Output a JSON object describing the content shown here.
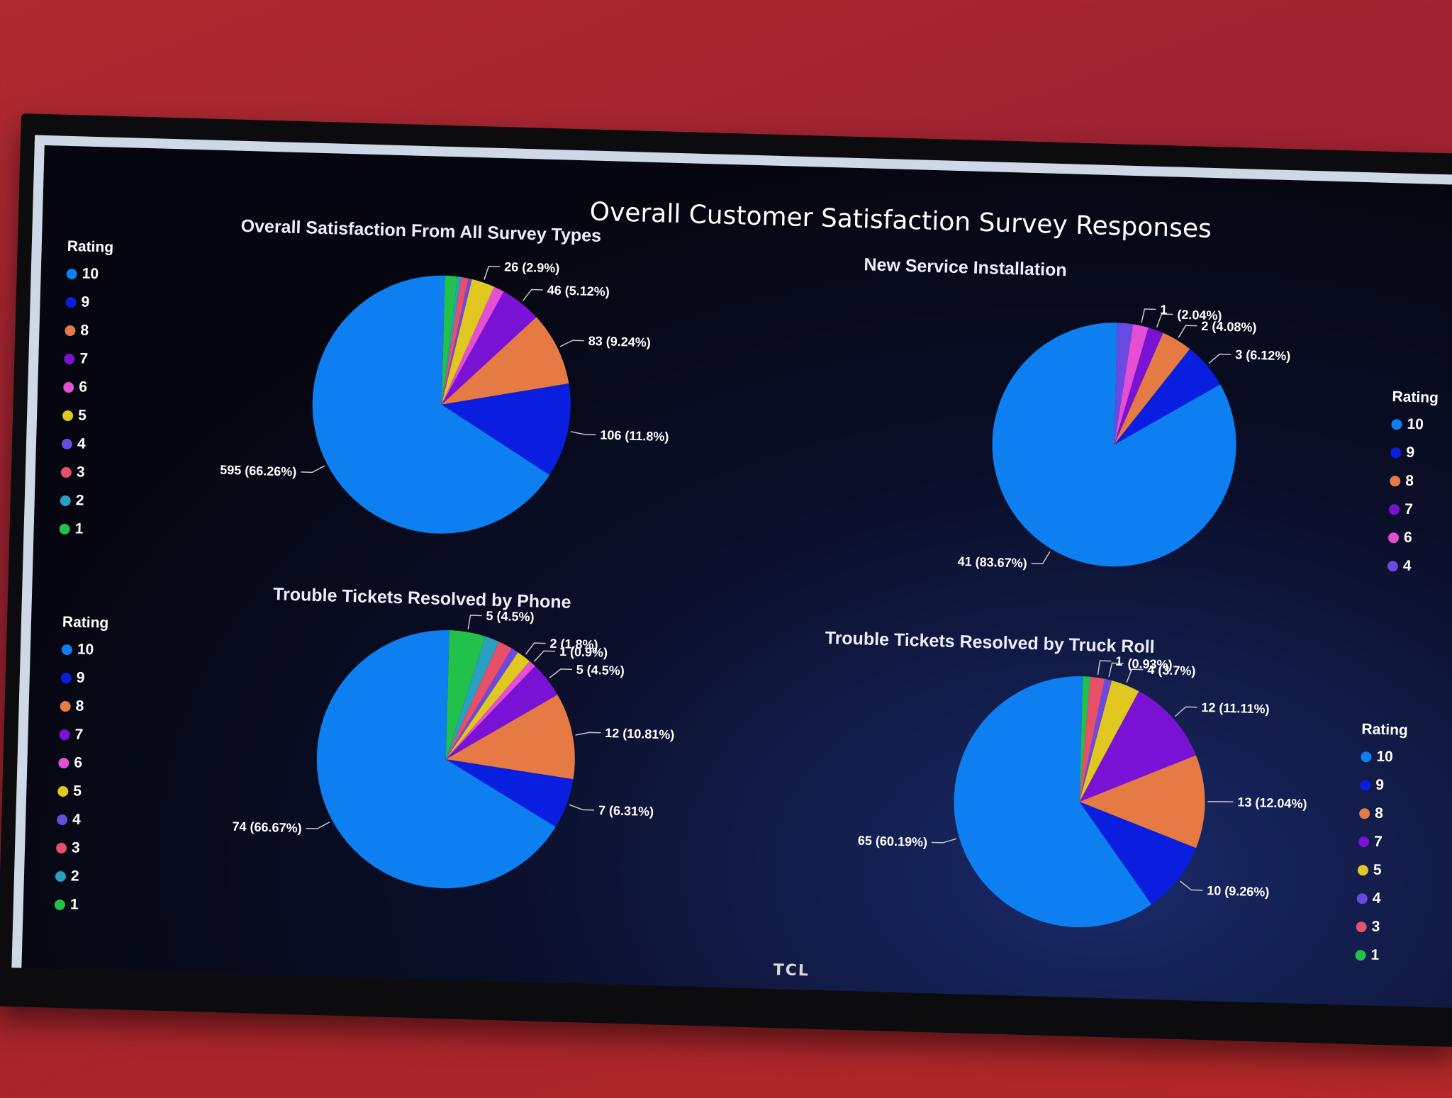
{
  "main_title": "Overall Customer Satisfaction Survey Responses",
  "brand": "TCL",
  "legend_title": "Rating",
  "colors": {
    "10": "#0d7ff0",
    "9": "#0a1ee0",
    "8": "#e57a45",
    "7": "#7a12d6",
    "6": "#e54fd6",
    "5": "#e0c820",
    "4": "#6a4ae0",
    "3": "#e8506a",
    "2": "#2aa0c0",
    "1": "#22c24a"
  },
  "legends": [
    [
      "10",
      "9",
      "8",
      "7",
      "6",
      "5",
      "4",
      "3",
      "2",
      "1"
    ],
    [
      "10",
      "9",
      "8",
      "7",
      "6",
      "4"
    ],
    [
      "10",
      "9",
      "8",
      "7",
      "6",
      "5",
      "4",
      "3",
      "2",
      "1"
    ],
    [
      "10",
      "9",
      "8",
      "7",
      "5",
      "4",
      "3",
      "1"
    ]
  ],
  "chart_data": [
    {
      "type": "pie",
      "title": "Overall Satisfaction From All Survey Types",
      "slices": [
        {
          "rating": "10",
          "value": 595,
          "label": "595 (66.26%)"
        },
        {
          "rating": "9",
          "value": 106,
          "label": "106 (11.8%)"
        },
        {
          "rating": "8",
          "value": 83,
          "label": "83 (9.24%)"
        },
        {
          "rating": "7",
          "value": 46,
          "label": "46 (5.12%)"
        },
        {
          "rating": "6",
          "value": 12,
          "label": ""
        },
        {
          "rating": "5",
          "value": 26,
          "label": "26 (2.9%)"
        },
        {
          "rating": "4",
          "value": 4,
          "label": ""
        },
        {
          "rating": "3",
          "value": 8,
          "label": ""
        },
        {
          "rating": "2",
          "value": 4,
          "label": ""
        },
        {
          "rating": "1",
          "value": 14,
          "label": ""
        }
      ]
    },
    {
      "type": "pie",
      "title": "New Service Installation",
      "slices": [
        {
          "rating": "10",
          "value": 41,
          "label": "41 (83.67%)"
        },
        {
          "rating": "9",
          "value": 3,
          "label": "3 (6.12%)"
        },
        {
          "rating": "8",
          "value": 2,
          "label": "2 (4.08%)"
        },
        {
          "rating": "7",
          "value": 1,
          "label": "(2.04%)"
        },
        {
          "rating": "6",
          "value": 1,
          "label": "1"
        },
        {
          "rating": "4",
          "value": 1,
          "label": ""
        }
      ]
    },
    {
      "type": "pie",
      "title": "Trouble Tickets Resolved by Phone",
      "slices": [
        {
          "rating": "10",
          "value": 74,
          "label": "74 (66.67%)"
        },
        {
          "rating": "9",
          "value": 7,
          "label": "7 (6.31%)"
        },
        {
          "rating": "8",
          "value": 12,
          "label": "12 (10.81%)"
        },
        {
          "rating": "7",
          "value": 5,
          "label": "5 (4.5%)"
        },
        {
          "rating": "6",
          "value": 1,
          "label": "1 (0.9%)"
        },
        {
          "rating": "5",
          "value": 2,
          "label": "2 (1.8%)"
        },
        {
          "rating": "4",
          "value": 1,
          "label": ""
        },
        {
          "rating": "3",
          "value": 2,
          "label": ""
        },
        {
          "rating": "2",
          "value": 2,
          "label": ""
        },
        {
          "rating": "1",
          "value": 5,
          "label": "5 (4.5%)"
        }
      ]
    },
    {
      "type": "pie",
      "title": "Trouble Tickets Resolved by Truck Roll",
      "slices": [
        {
          "rating": "10",
          "value": 65,
          "label": "65 (60.19%)"
        },
        {
          "rating": "9",
          "value": 10,
          "label": "10 (9.26%)"
        },
        {
          "rating": "8",
          "value": 13,
          "label": "13 (12.04%)"
        },
        {
          "rating": "7",
          "value": 12,
          "label": "12 (11.11%)"
        },
        {
          "rating": "5",
          "value": 4,
          "label": "4 (3.7%)"
        },
        {
          "rating": "4",
          "value": 1,
          "label": "(0.93%)"
        },
        {
          "rating": "3",
          "value": 2,
          "label": "1"
        },
        {
          "rating": "1",
          "value": 1,
          "label": ""
        }
      ]
    }
  ]
}
